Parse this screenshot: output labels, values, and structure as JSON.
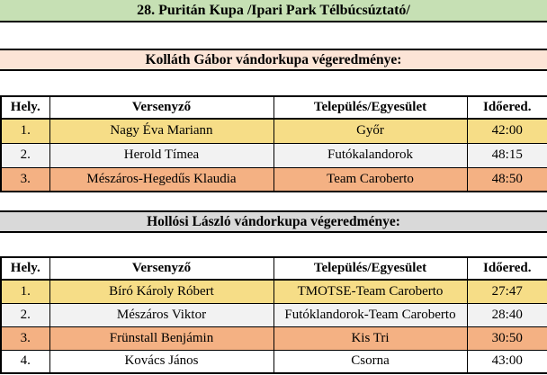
{
  "title": "28. Puritán Kupa /Ipari Park Télbúcsúztató/",
  "sections": [
    {
      "header": "Kolláth Gábor vándorkupa végeredménye:",
      "columns": [
        "Hely.",
        "Versenyző",
        "Település/Egyesület",
        "Időered."
      ],
      "rows": [
        {
          "place": "1.",
          "name": "Nagy Éva Mariann",
          "club": "Győr",
          "time": "42:00"
        },
        {
          "place": "2.",
          "name": "Herold Tímea",
          "club": "Futókalandorok",
          "time": "48:15"
        },
        {
          "place": "3.",
          "name": "Mészáros-Hegedűs Klaudia",
          "club": "Team Caroberto",
          "time": "48:50"
        }
      ]
    },
    {
      "header": "Hollósi László vándorkupa végeredménye:",
      "columns": [
        "Hely.",
        "Versenyző",
        "Település/Egyesület",
        "Időered."
      ],
      "rows": [
        {
          "place": "1.",
          "name": "Bíró Károly Róbert",
          "club": "TMOTSE-Team Caroberto",
          "time": "27:47"
        },
        {
          "place": "2.",
          "name": "Mészáros Viktor",
          "club": "Futóklandorok-Team Caroberto",
          "time": "28:40"
        },
        {
          "place": "3.",
          "name": "Frünstall Benjámin",
          "club": "Kis Tri",
          "time": "30:50"
        },
        {
          "place": "4.",
          "name": "Kovács János",
          "club": "Csorna",
          "time": "43:00"
        }
      ]
    }
  ],
  "colors": {
    "title_bg": "#C6E0B4",
    "section1_header_bg": "#FCE4D6",
    "section2_header_bg": "#D9D9D9",
    "gold_row": "#F6DD87",
    "silver_row": "#F2F2F2",
    "bronze_row": "#F4B183",
    "border": "#000000"
  }
}
